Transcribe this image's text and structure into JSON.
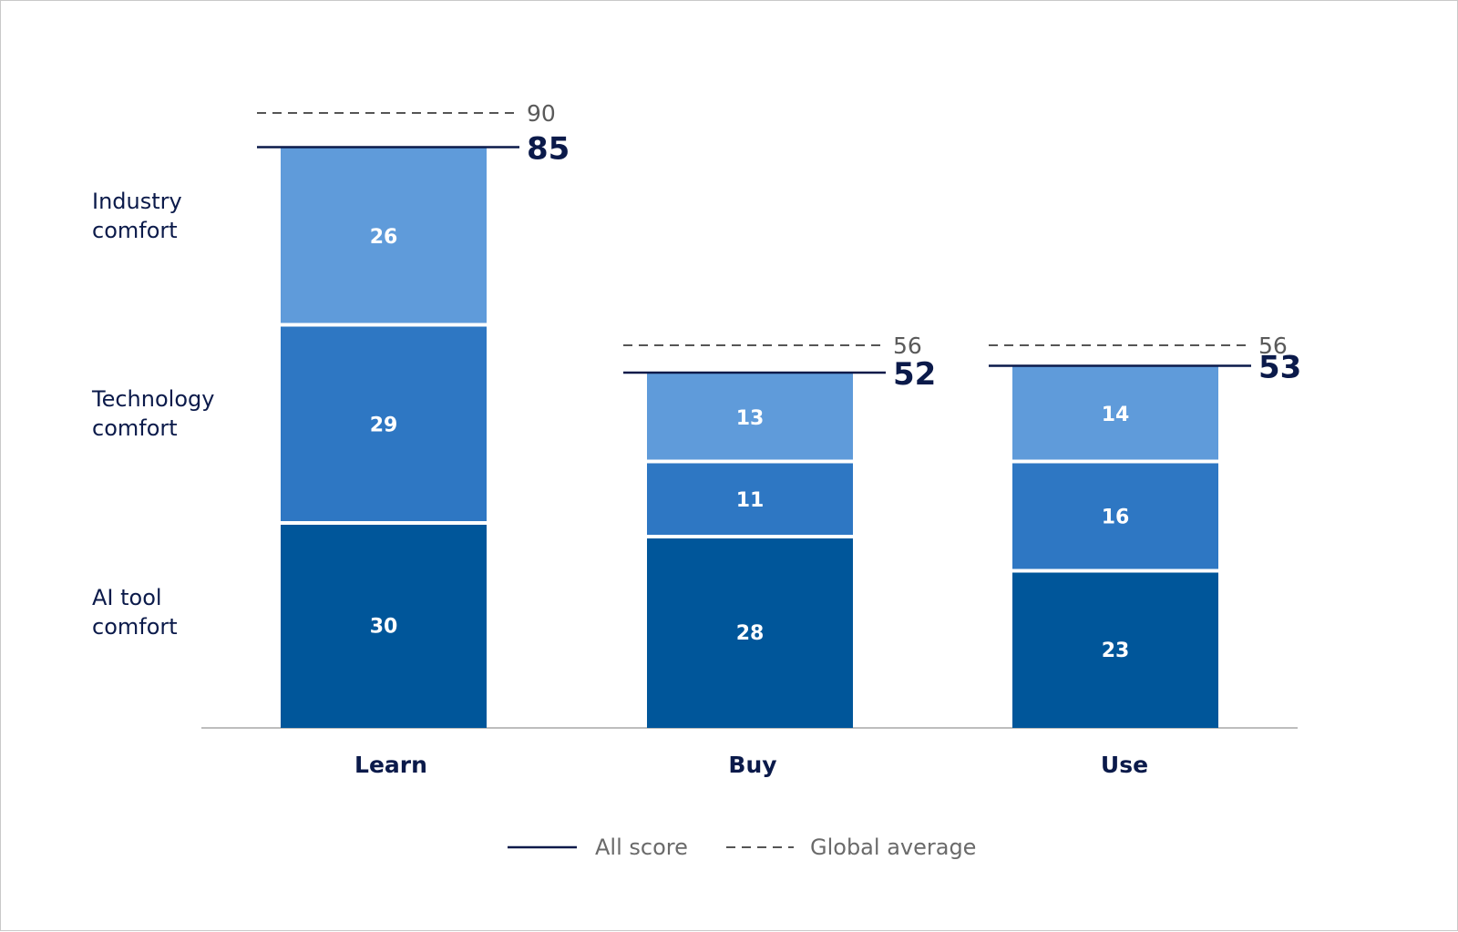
{
  "chart_data": {
    "type": "bar",
    "stacked": true,
    "categories": [
      "Learn",
      "Buy",
      "Use"
    ],
    "series": [
      {
        "name": "AI tool comfort",
        "values": [
          30,
          28,
          23
        ],
        "color": "#00569a"
      },
      {
        "name": "Technology comfort",
        "values": [
          29,
          11,
          16
        ],
        "color": "#2e77c3"
      },
      {
        "name": "Industry comfort",
        "values": [
          26,
          13,
          14
        ],
        "color": "#5f9bda"
      }
    ],
    "row_labels": [
      [
        "AI tool",
        "comfort"
      ],
      [
        "Technology",
        "comfort"
      ],
      [
        "Industry",
        "comfort"
      ]
    ],
    "all_score": [
      85,
      52,
      53
    ],
    "global_average": [
      90,
      56,
      56
    ],
    "legend": {
      "all_score": "All score",
      "global_average": "Global average",
      "placement": "bottom-center"
    },
    "colors": {
      "score_line": "#0b1a4a",
      "average_line": "#555555",
      "axis": "#bdbdbd"
    },
    "grid": false
  }
}
